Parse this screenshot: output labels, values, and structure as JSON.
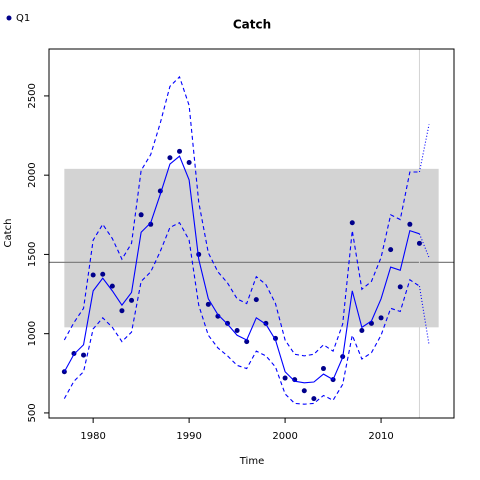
{
  "chart_data": {
    "type": "line",
    "title": "Catch",
    "x_label": "Time",
    "y_label": "Catch",
    "legend": {
      "label": "Q1",
      "color": "#00008b",
      "corner": "top-left"
    },
    "x": [
      1977,
      1978,
      1979,
      1980,
      1981,
      1982,
      1983,
      1984,
      1985,
      1986,
      1987,
      1988,
      1989,
      1990,
      1991,
      1992,
      1993,
      1994,
      1995,
      1996,
      1997,
      1998,
      1999,
      2000,
      2001,
      2002,
      2003,
      2004,
      2005,
      2006,
      2007,
      2008,
      2009,
      2010,
      2011,
      2012,
      2013,
      2014
    ],
    "series": [
      {
        "style": "points",
        "color": "#00008b",
        "values": [
          760,
          875,
          865,
          1370,
          1375,
          1300,
          1145,
          1210,
          1750,
          1690,
          1900,
          2110,
          2150,
          2080,
          1500,
          1185,
          1110,
          1065,
          1020,
          950,
          1215,
          1065,
          970,
          720,
          710,
          640,
          590,
          780,
          710,
          855,
          1700,
          1020,
          1065,
          1100,
          1530,
          1295,
          1690,
          1570
        ]
      },
      {
        "style": "solid",
        "color": "#0000ff",
        "values": [
          760,
          870,
          930,
          1270,
          1350,
          1270,
          1180,
          1260,
          1640,
          1700,
          1880,
          2070,
          2120,
          1970,
          1470,
          1220,
          1120,
          1060,
          990,
          960,
          1100,
          1060,
          960,
          760,
          700,
          690,
          695,
          745,
          710,
          850,
          1270,
          1040,
          1080,
          1220,
          1420,
          1400,
          1650,
          1630
        ]
      },
      {
        "style": "dashed",
        "color": "#0000ff",
        "values": [
          960,
          1070,
          1160,
          1590,
          1690,
          1600,
          1470,
          1570,
          2030,
          2130,
          2330,
          2560,
          2620,
          2440,
          1830,
          1510,
          1390,
          1320,
          1220,
          1190,
          1360,
          1310,
          1190,
          960,
          870,
          860,
          870,
          930,
          890,
          1060,
          1650,
          1280,
          1330,
          1480,
          1750,
          1720,
          2020,
          2020
        ]
      },
      {
        "style": "dashed",
        "color": "#0000ff",
        "values": [
          590,
          700,
          760,
          1030,
          1100,
          1040,
          950,
          1010,
          1330,
          1390,
          1520,
          1670,
          1700,
          1590,
          1180,
          990,
          910,
          860,
          800,
          780,
          890,
          860,
          790,
          620,
          560,
          555,
          560,
          610,
          580,
          680,
          990,
          840,
          880,
          990,
          1160,
          1140,
          1340,
          1300
        ]
      }
    ],
    "projection": {
      "x": [
        2014,
        2015
      ],
      "style": "dotted",
      "color": "#0000ff",
      "series": [
        {
          "values": [
            1630,
            1480
          ]
        },
        {
          "values": [
            2020,
            2320
          ]
        },
        {
          "values": [
            1300,
            930
          ]
        }
      ]
    },
    "band": {
      "x": [
        1977,
        2016
      ],
      "y": [
        1040,
        2040
      ],
      "color": "#d3d3d3"
    },
    "hline": {
      "value": 1450,
      "color": "#808080"
    },
    "vline": {
      "value": 2014,
      "color": "#d3d3d3"
    },
    "xlim": [
      1975.4,
      2017.6
    ],
    "ylim": [
      468,
      2796
    ],
    "xticks": [
      1980,
      1990,
      2000,
      2010
    ],
    "yticks": [
      500,
      1000,
      1500,
      2000,
      2500
    ]
  }
}
